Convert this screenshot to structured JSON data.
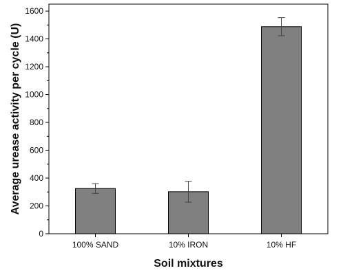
{
  "chart_data": {
    "type": "bar",
    "title": "",
    "xlabel": "Soil mixtures",
    "ylabel": "Average urease activity per cycle (U)",
    "categories": [
      "100% SAND",
      "10% IRON",
      "10% HF"
    ],
    "series": [
      {
        "values": [
          325,
          302,
          1488
        ],
        "error": [
          35,
          75,
          65
        ],
        "color": "#808080"
      }
    ],
    "ylim": [
      0,
      1650
    ],
    "yticks": [
      0,
      200,
      400,
      600,
      800,
      1000,
      1200,
      1400,
      1600
    ],
    "grid": false,
    "legend": "none",
    "minor_ticks": true
  }
}
